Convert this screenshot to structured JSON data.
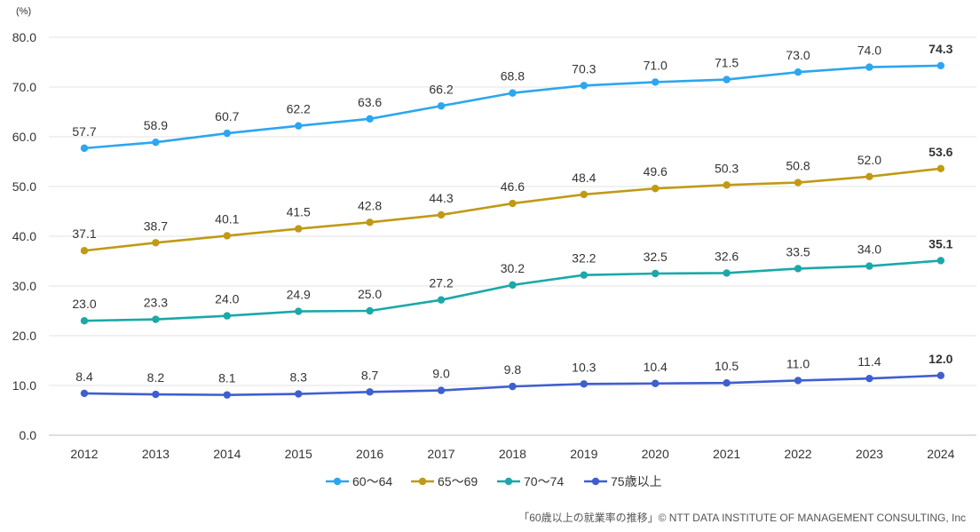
{
  "chart_data": {
    "type": "line",
    "unit_label": "(%)",
    "categories": [
      "2012",
      "2013",
      "2014",
      "2015",
      "2016",
      "2017",
      "2018",
      "2019",
      "2020",
      "2021",
      "2022",
      "2023",
      "2024"
    ],
    "ylim": [
      0,
      80
    ],
    "yticks": [
      "0.0",
      "10.0",
      "20.0",
      "30.0",
      "40.0",
      "50.0",
      "60.0",
      "70.0",
      "80.0"
    ],
    "grid": true,
    "legend_position": "bottom-center",
    "series": [
      {
        "name": "60～64",
        "color": "#2ca6ef",
        "values": [
          57.7,
          58.9,
          60.7,
          62.2,
          63.6,
          66.2,
          68.8,
          70.3,
          71.0,
          71.5,
          73.0,
          74.0,
          74.3
        ],
        "labels": [
          "57.7",
          "58.9",
          "60.7",
          "62.2",
          "63.6",
          "66.2",
          "68.8",
          "70.3",
          "71.0",
          "71.5",
          "73.0",
          "74.0",
          "74.3"
        ]
      },
      {
        "name": "65～69",
        "color": "#c09a16",
        "values": [
          37.1,
          38.7,
          40.1,
          41.5,
          42.8,
          44.3,
          46.6,
          48.4,
          49.6,
          50.3,
          50.8,
          52.0,
          53.6
        ],
        "labels": [
          "37.1",
          "38.7",
          "40.1",
          "41.5",
          "42.8",
          "44.3",
          "46.6",
          "48.4",
          "49.6",
          "50.3",
          "50.8",
          "52.0",
          "53.6"
        ]
      },
      {
        "name": "70～74",
        "color": "#1ba8a8",
        "values": [
          23.0,
          23.3,
          24.0,
          24.9,
          25.0,
          27.2,
          30.2,
          32.2,
          32.5,
          32.6,
          33.5,
          34.0,
          35.1
        ],
        "labels": [
          "23.0",
          "23.3",
          "24.0",
          "24.9",
          "25.0",
          "27.2",
          "30.2",
          "32.2",
          "32.5",
          "32.6",
          "33.5",
          "34.0",
          "35.1"
        ]
      },
      {
        "name": "75歳以上",
        "color": "#3f5fcf",
        "values": [
          8.4,
          8.2,
          8.1,
          8.3,
          8.7,
          9.0,
          9.8,
          10.3,
          10.4,
          10.5,
          11.0,
          11.4,
          12.0
        ],
        "labels": [
          "8.4",
          "8.2",
          "8.1",
          "8.3",
          "8.7",
          "9.0",
          "9.8",
          "10.3",
          "10.4",
          "10.5",
          "11.0",
          "11.4",
          "12.0"
        ]
      }
    ]
  },
  "credit": "「60歳以上の就業率の推移」© NTT DATA INSTITUTE OF MANAGEMENT CONSULTING, Inc"
}
